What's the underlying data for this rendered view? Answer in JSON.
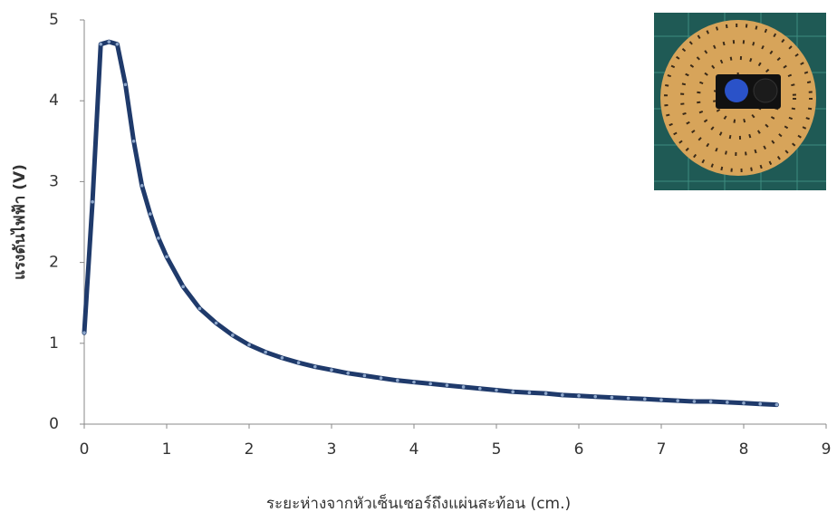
{
  "chart_data": {
    "type": "line",
    "xlabel": "ระยะห่างจากหัวเซ็นเซอร์ถึงแผ่นสะท้อน (cm.)",
    "ylabel": "แรงดันไฟฟ้า (V)",
    "x": [
      0,
      0.1,
      0.2,
      0.3,
      0.4,
      0.5,
      0.6,
      0.7,
      0.8,
      0.9,
      1.0,
      1.2,
      1.4,
      1.6,
      1.8,
      2.0,
      2.2,
      2.4,
      2.6,
      2.8,
      3.0,
      3.2,
      3.4,
      3.6,
      3.8,
      4.0,
      4.2,
      4.4,
      4.6,
      4.8,
      5.0,
      5.2,
      5.4,
      5.6,
      5.8,
      6.0,
      6.2,
      6.4,
      6.6,
      6.8,
      7.0,
      7.2,
      7.4,
      7.6,
      7.8,
      8.0,
      8.2,
      8.4
    ],
    "values": [
      1.13,
      2.75,
      4.7,
      4.73,
      4.7,
      4.2,
      3.5,
      2.95,
      2.6,
      2.3,
      2.07,
      1.7,
      1.43,
      1.25,
      1.1,
      0.98,
      0.89,
      0.82,
      0.76,
      0.71,
      0.67,
      0.63,
      0.6,
      0.57,
      0.54,
      0.52,
      0.5,
      0.48,
      0.46,
      0.44,
      0.42,
      0.4,
      0.39,
      0.38,
      0.36,
      0.35,
      0.34,
      0.33,
      0.32,
      0.31,
      0.3,
      0.29,
      0.28,
      0.28,
      0.27,
      0.26,
      0.25,
      0.24
    ],
    "color": "#1f3a6b",
    "marker_color": "#8fa8cc",
    "xlim": [
      0,
      9
    ],
    "xticks": [
      0,
      1,
      2,
      3,
      4,
      5,
      6,
      7,
      8,
      9
    ],
    "ylim": [
      0,
      5
    ],
    "yticks": [
      0,
      1,
      2,
      3,
      4,
      5
    ],
    "grid": false
  }
}
